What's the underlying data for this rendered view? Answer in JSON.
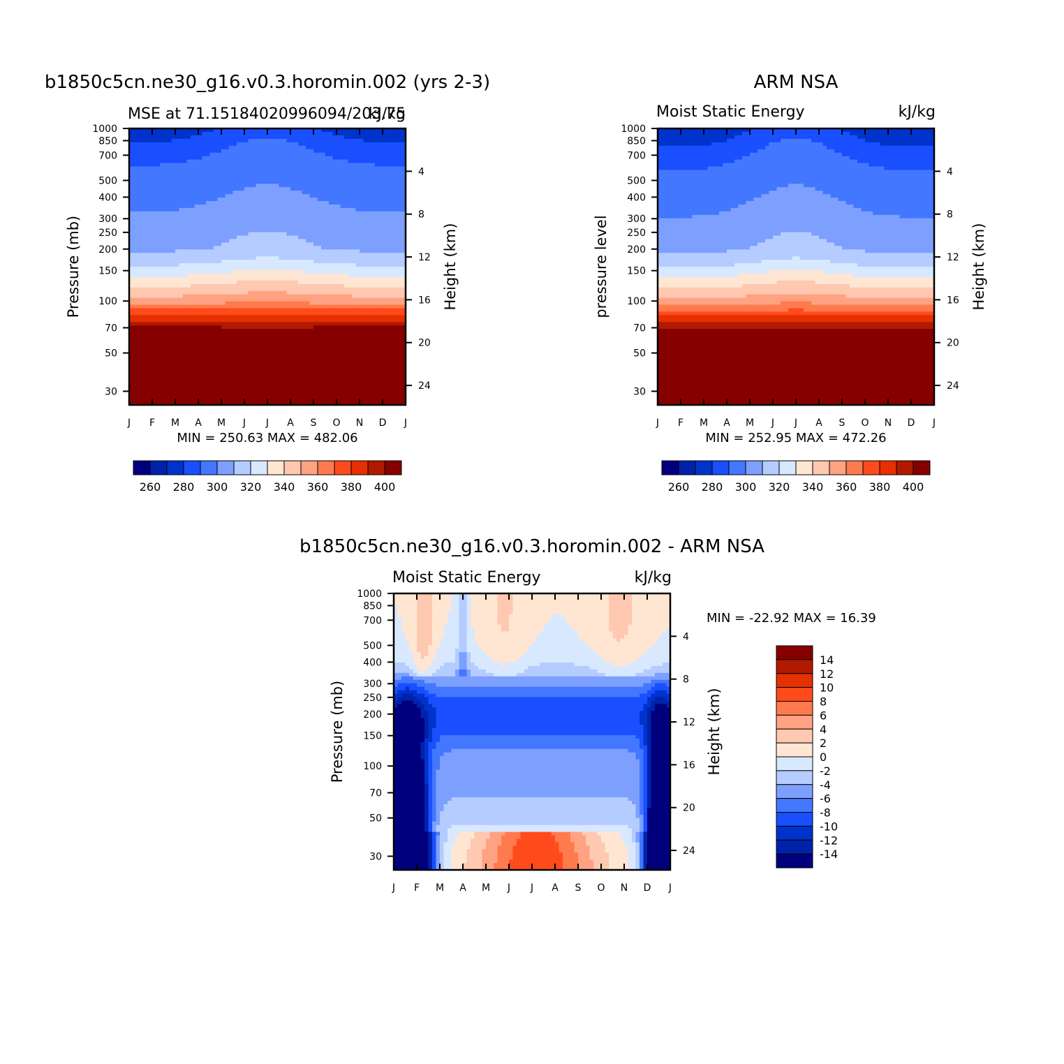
{
  "chart_data": [
    {
      "type": "heatmap",
      "title": "b1850c5cn.ne30_g16.v0.3.horomin.002 (yrs 2-3)",
      "subtitle_left": "MSE at 71.15184020996094/203.75",
      "subtitle_right": "kJ/kg",
      "ylabel": "Pressure (mb)",
      "ylabel_right": "Height (km)",
      "x_ticks": [
        "J",
        "F",
        "M",
        "A",
        "M",
        "J",
        "J",
        "A",
        "S",
        "O",
        "N",
        "D",
        "J"
      ],
      "y_ticks": [
        30,
        50,
        70,
        100,
        150,
        200,
        250,
        300,
        400,
        500,
        700,
        850,
        1000
      ],
      "y_right_ticks": [
        24,
        20,
        16,
        12,
        8,
        4
      ],
      "ylim": [
        1000,
        25
      ],
      "min_max": "MIN = 250.63 MAX = 482.06",
      "colorbar": {
        "levels": [
          255,
          260,
          265,
          270,
          280,
          290,
          300,
          310,
          320,
          330,
          340,
          350,
          360,
          370,
          380,
          390,
          400
        ],
        "labels": [
          "260",
          "280",
          "300",
          "320",
          "340",
          "360",
          "380",
          "400"
        ],
        "colors": [
          "#00007f",
          "#0022aa",
          "#0033cc",
          "#1a4fff",
          "#4477ff",
          "#7da0ff",
          "#b4ccff",
          "#d8e8ff",
          "#ffe6d2",
          "#ffc8b0",
          "#ffa282",
          "#ff7a4c",
          "#ff4b1c",
          "#e63000",
          "#b11a00",
          "#870000"
        ]
      },
      "month_offset": 0
    },
    {
      "type": "heatmap",
      "title": "ARM NSA",
      "subtitle_left": "Moist Static Energy",
      "subtitle_right": "kJ/kg",
      "ylabel": "pressure level",
      "ylabel_right": "Height (km)",
      "x_ticks": [
        "J",
        "F",
        "M",
        "A",
        "M",
        "J",
        "J",
        "A",
        "S",
        "O",
        "N",
        "D",
        "J"
      ],
      "y_ticks": [
        30,
        50,
        70,
        100,
        150,
        200,
        250,
        300,
        400,
        500,
        700,
        850,
        1000
      ],
      "y_right_ticks": [
        24,
        20,
        16,
        12,
        8,
        4
      ],
      "ylim": [
        1000,
        25
      ],
      "min_max": "MIN = 252.95 MAX = 472.26",
      "colorbar": {
        "levels": [
          255,
          260,
          265,
          270,
          280,
          290,
          300,
          310,
          320,
          330,
          340,
          350,
          360,
          370,
          380,
          390,
          400
        ],
        "labels": [
          "260",
          "280",
          "300",
          "320",
          "340",
          "360",
          "380",
          "400"
        ],
        "colors": [
          "#00007f",
          "#0022aa",
          "#0033cc",
          "#1a4fff",
          "#4477ff",
          "#7da0ff",
          "#b4ccff",
          "#d8e8ff",
          "#ffe6d2",
          "#ffc8b0",
          "#ffa282",
          "#ff7a4c",
          "#ff4b1c",
          "#e63000",
          "#b11a00",
          "#870000"
        ]
      },
      "month_offset": 0
    },
    {
      "type": "heatmap",
      "title": "b1850c5cn.ne30_g16.v0.3.horomin.002 - ARM NSA",
      "subtitle_left": "Moist Static Energy",
      "subtitle_right": "kJ/kg",
      "ylabel": "Pressure (mb)",
      "ylabel_right": "Height (km)",
      "x_ticks": [
        "J",
        "F",
        "M",
        "A",
        "M",
        "J",
        "J",
        "A",
        "S",
        "O",
        "N",
        "D",
        "J"
      ],
      "y_ticks": [
        30,
        50,
        70,
        100,
        150,
        200,
        250,
        300,
        400,
        500,
        700,
        850,
        1000
      ],
      "y_right_ticks": [
        24,
        20,
        16,
        12,
        8,
        4
      ],
      "ylim": [
        1000,
        25
      ],
      "min_max": "MIN = -22.92 MAX =  16.39",
      "colorbar": {
        "levels": [
          -14,
          -12,
          -10,
          -8,
          -6,
          -4,
          -2,
          0,
          2,
          4,
          6,
          8,
          10,
          12,
          14
        ],
        "labels": [
          "14",
          "12",
          "10",
          "8",
          "6",
          "4",
          "2",
          "0",
          "-2",
          "-4",
          "-6",
          "-8",
          "-10",
          "-12",
          "-14"
        ],
        "colors": [
          "#00007f",
          "#0022aa",
          "#0033cc",
          "#1a4fff",
          "#4477ff",
          "#7da0ff",
          "#b4ccff",
          "#d8e8ff",
          "#ffe6d2",
          "#ffc8b0",
          "#ffa282",
          "#ff7a4c",
          "#ff4b1c",
          "#e63000",
          "#b11a00",
          "#870000"
        ]
      }
    }
  ]
}
